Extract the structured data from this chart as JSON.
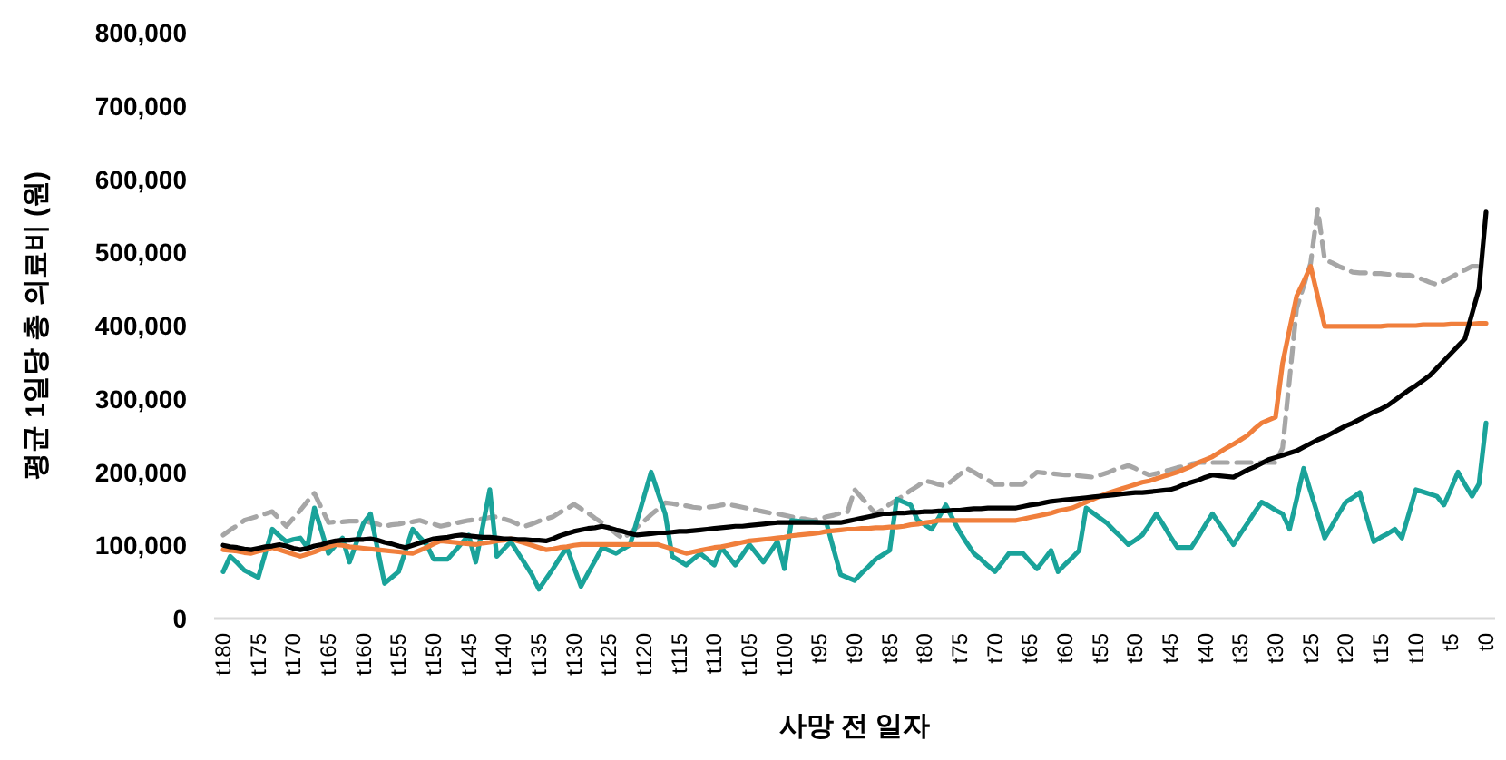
{
  "chart_data": {
    "type": "line",
    "xlabel": "사망 전 일자",
    "ylabel": "평균 1일당 총 의료비 (원)",
    "ylim": [
      0,
      800000
    ],
    "yticks": [
      0,
      {
        "value": 100000,
        "label": "100,000"
      },
      {
        "value": 200000,
        "label": "200,000"
      },
      {
        "value": 300000,
        "label": "300,000"
      },
      {
        "value": 400000,
        "label": "400,000"
      },
      {
        "value": 500000,
        "label": "500,000"
      },
      {
        "value": 600000,
        "label": "600,000"
      },
      {
        "value": 700000,
        "label": "700,000"
      },
      {
        "value": 800000,
        "label": "800,000"
      }
    ],
    "categories": [
      "t180",
      null,
      null,
      null,
      null,
      "t175",
      null,
      null,
      null,
      null,
      "t170",
      null,
      null,
      null,
      null,
      "t165",
      null,
      null,
      null,
      null,
      "t160",
      null,
      null,
      null,
      null,
      "t155",
      null,
      null,
      null,
      null,
      "t150",
      null,
      null,
      null,
      null,
      "t145",
      null,
      null,
      null,
      null,
      "t140",
      null,
      null,
      null,
      null,
      "t135",
      null,
      null,
      null,
      null,
      "t130",
      null,
      null,
      null,
      null,
      "t125",
      null,
      null,
      null,
      null,
      "t120",
      null,
      null,
      null,
      null,
      "t115",
      null,
      null,
      null,
      null,
      "t110",
      null,
      null,
      null,
      null,
      "t105",
      null,
      null,
      null,
      null,
      "t100",
      null,
      null,
      null,
      null,
      "t95",
      null,
      null,
      null,
      null,
      "t90",
      null,
      null,
      null,
      null,
      "t85",
      null,
      null,
      null,
      null,
      "t80",
      null,
      null,
      null,
      null,
      "t75",
      null,
      null,
      null,
      null,
      "t70",
      null,
      null,
      null,
      null,
      "t65",
      null,
      null,
      null,
      null,
      "t60",
      null,
      null,
      null,
      null,
      "t55",
      null,
      null,
      null,
      null,
      "t50",
      null,
      null,
      null,
      null,
      "t45",
      null,
      null,
      null,
      null,
      "t40",
      null,
      null,
      null,
      null,
      "t35",
      null,
      null,
      null,
      null,
      "t30",
      null,
      null,
      null,
      null,
      "t25",
      null,
      null,
      null,
      null,
      "t20",
      null,
      null,
      null,
      null,
      "t15",
      null,
      null,
      null,
      null,
      "t10",
      null,
      null,
      null,
      null,
      "t5",
      null,
      null,
      null,
      null,
      "t0"
    ],
    "series": [
      {
        "color": "#a6a6a6",
        "line_style": "dashed",
        "values": [
          114000,
          121000,
          127000,
          134000,
          137000,
          140000,
          143000,
          146000,
          136000,
          126000,
          137000,
          148000,
          160000,
          171000,
          151000,
          131000,
          132000,
          132000,
          133000,
          133000,
          134000,
          131000,
          129000,
          126000,
          128000,
          129000,
          131000,
          132000,
          134000,
          131000,
          129000,
          126000,
          128000,
          130000,
          132000,
          134000,
          135000,
          136000,
          138000,
          139000,
          136000,
          133000,
          129000,
          126000,
          129000,
          133000,
          136000,
          139000,
          145000,
          150000,
          156000,
          150000,
          144000,
          137000,
          131000,
          124000,
          116000,
          109000,
          117000,
          125000,
          133000,
          142000,
          150000,
          158000,
          157000,
          155000,
          154000,
          152000,
          151000,
          152000,
          153000,
          155000,
          156000,
          154000,
          152000,
          150000,
          148000,
          146000,
          144000,
          143000,
          141000,
          139000,
          137000,
          136000,
          134000,
          136000,
          139000,
          141000,
          144000,
          146000,
          176000,
          165000,
          154000,
          143000,
          149000,
          156000,
          162000,
          168000,
          175000,
          181000,
          188000,
          186000,
          183000,
          181000,
          189000,
          197000,
          205000,
          200000,
          194000,
          189000,
          183000,
          183000,
          183000,
          183000,
          183000,
          192000,
          200000,
          199000,
          198000,
          197000,
          196000,
          196000,
          195000,
          194000,
          193000,
          196000,
          199000,
          203000,
          206000,
          209000,
          205000,
          200000,
          196000,
          198000,
          201000,
          203000,
          206000,
          208000,
          211000,
          213000,
          213000,
          213000,
          213000,
          213000,
          213000,
          213000,
          213000,
          213000,
          213000,
          213000,
          213000,
          233000,
          328000,
          423000,
          454000,
          485000,
          559000,
          490000,
          486000,
          481000,
          477000,
          473000,
          472000,
          472000,
          471000,
          471000,
          470000,
          470000,
          469000,
          469000,
          466000,
          463000,
          459000,
          456000,
          461000,
          466000,
          471000,
          476000,
          481000,
          481000,
          null
        ]
      },
      {
        "color": "#1aa39a",
        "line_style": "solid",
        "values": [
          64000,
          85000,
          76000,
          66000,
          61000,
          56000,
          89000,
          122000,
          113000,
          105000,
          108000,
          110000,
          97000,
          151000,
          120000,
          89000,
          100000,
          110000,
          77000,
          104000,
          130000,
          143000,
          95000,
          48000,
          56000,
          64000,
          93000,
          122000,
          111000,
          101000,
          81000,
          81000,
          81000,
          92000,
          103000,
          114000,
          77000,
          126000,
          176000,
          85000,
          95000,
          105000,
          90000,
          75000,
          60000,
          40000,
          54000,
          68000,
          83000,
          97000,
          70000,
          44000,
          62000,
          79000,
          97000,
          93000,
          89000,
          95000,
          101000,
          134000,
          167000,
          200000,
          171000,
          143000,
          85000,
          79000,
          73000,
          81000,
          89000,
          81000,
          73000,
          97000,
          85000,
          73000,
          87000,
          101000,
          89000,
          77000,
          91000,
          105000,
          68000,
          134000,
          133000,
          132000,
          132000,
          131000,
          130000,
          95000,
          60000,
          56000,
          52000,
          62000,
          71000,
          81000,
          87000,
          93000,
          163000,
          159000,
          155000,
          134000,
          128000,
          122000,
          138000,
          155000,
          136000,
          118000,
          103000,
          89000,
          81000,
          72000,
          64000,
          76000,
          89000,
          89000,
          89000,
          78000,
          68000,
          80000,
          93000,
          64000,
          74000,
          83000,
          93000,
          151000,
          144000,
          137000,
          130000,
          120000,
          111000,
          101000,
          107000,
          114000,
          128000,
          143000,
          128000,
          112000,
          97000,
          97000,
          97000,
          112000,
          128000,
          143000,
          129000,
          115000,
          101000,
          116000,
          130000,
          145000,
          159000,
          154000,
          148000,
          143000,
          122000,
          163000,
          205000,
          173000,
          142000,
          110000,
          126000,
          143000,
          159000,
          165000,
          172000,
          138000,
          105000,
          111000,
          116000,
          122000,
          110000,
          143000,
          176000,
          173000,
          170000,
          167000,
          155000,
          177000,
          200000,
          183000,
          167000,
          184000,
          267000
        ]
      },
      {
        "color": "#f07f3c",
        "line_style": "solid",
        "values": [
          94000,
          93000,
          92000,
          90000,
          89000,
          92000,
          94000,
          97000,
          94000,
          91000,
          88000,
          85000,
          88000,
          91000,
          95000,
          98000,
          101000,
          100000,
          98000,
          97000,
          96000,
          95000,
          94000,
          93000,
          92000,
          91000,
          90000,
          89000,
          93000,
          97000,
          102000,
          106000,
          105000,
          104000,
          103000,
          102000,
          101000,
          103000,
          104000,
          106000,
          107000,
          109000,
          106000,
          103000,
          100000,
          97000,
          94000,
          95000,
          97000,
          98000,
          100000,
          101000,
          101000,
          101000,
          101000,
          101000,
          101000,
          101000,
          101000,
          101000,
          101000,
          101000,
          101000,
          98000,
          95000,
          92000,
          89000,
          91000,
          93000,
          95000,
          97000,
          98000,
          100000,
          102000,
          104000,
          106000,
          107000,
          108000,
          109000,
          110000,
          111000,
          113000,
          114000,
          115000,
          116000,
          117000,
          119000,
          120000,
          121000,
          122000,
          122000,
          123000,
          123000,
          124000,
          124000,
          125000,
          125000,
          126000,
          128000,
          129000,
          131000,
          132000,
          134000,
          134000,
          134000,
          134000,
          134000,
          134000,
          134000,
          134000,
          134000,
          134000,
          134000,
          134000,
          136000,
          138000,
          140000,
          142000,
          144000,
          147000,
          149000,
          151000,
          155000,
          159000,
          163000,
          167000,
          171000,
          174000,
          177000,
          180000,
          183000,
          186000,
          188000,
          191000,
          194000,
          197000,
          200000,
          204000,
          208000,
          213000,
          217000,
          221000,
          227000,
          233000,
          238000,
          244000,
          250000,
          259000,
          267000,
          271000,
          275000,
          349000,
          395000,
          440000,
          460000,
          481000,
          440000,
          399000,
          399000,
          399000,
          399000,
          399000,
          399000,
          399000,
          399000,
          399000,
          400000,
          400000,
          400000,
          400000,
          400000,
          401000,
          401000,
          401000,
          401000,
          402000,
          402000,
          402000,
          402000,
          403000,
          403000
        ]
      },
      {
        "color": "#000000",
        "line_style": "solid",
        "values": [
          100000,
          98000,
          97000,
          95000,
          94000,
          96000,
          98000,
          99000,
          101000,
          99000,
          96000,
          94000,
          96000,
          99000,
          101000,
          104000,
          106000,
          107000,
          107000,
          108000,
          108000,
          109000,
          107000,
          104000,
          102000,
          99000,
          97000,
          100000,
          103000,
          106000,
          109000,
          110000,
          111000,
          113000,
          114000,
          113000,
          112000,
          111000,
          111000,
          110000,
          109000,
          109000,
          108000,
          108000,
          107000,
          107000,
          106000,
          109000,
          113000,
          116000,
          119000,
          121000,
          123000,
          124000,
          126000,
          124000,
          121000,
          119000,
          116000,
          114000,
          115000,
          116000,
          117000,
          117000,
          118000,
          119000,
          119000,
          120000,
          121000,
          122000,
          123000,
          124000,
          125000,
          126000,
          126000,
          127000,
          128000,
          129000,
          130000,
          131000,
          131000,
          131000,
          131000,
          131000,
          131000,
          131000,
          131000,
          131000,
          131000,
          133000,
          135000,
          137000,
          139000,
          141000,
          143000,
          143000,
          144000,
          144000,
          145000,
          145000,
          146000,
          146000,
          147000,
          147000,
          148000,
          148000,
          149000,
          150000,
          150000,
          151000,
          151000,
          151000,
          151000,
          151000,
          153000,
          155000,
          156000,
          158000,
          160000,
          161000,
          162000,
          163000,
          164000,
          165000,
          166000,
          167000,
          168000,
          169000,
          170000,
          171000,
          172000,
          172000,
          173000,
          174000,
          175000,
          176000,
          179000,
          183000,
          186000,
          189000,
          193000,
          196000,
          195000,
          194000,
          193000,
          198000,
          203000,
          207000,
          212000,
          217000,
          220000,
          223000,
          226000,
          229000,
          234000,
          239000,
          244000,
          248000,
          253000,
          258000,
          263000,
          267000,
          272000,
          277000,
          282000,
          286000,
          291000,
          298000,
          305000,
          312000,
          318000,
          325000,
          332000,
          342000,
          352000,
          362000,
          372000,
          382000,
          416000,
          450000,
          555000
        ]
      }
    ]
  }
}
